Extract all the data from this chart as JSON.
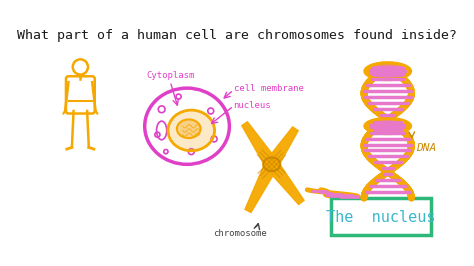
{
  "bg_color": "#ffffff",
  "title": "What part of a human cell are chromosomes found inside?",
  "title_color": "#1a1a1a",
  "title_fontsize": 9.5,
  "answer_text": "The  nucleus",
  "answer_color": "#3bb8cc",
  "answer_box_color": "#2db87a",
  "answer_fontsize": 11,
  "label_cytoplasm": "Cytoplasm",
  "label_cell_membrane": "cell membrane",
  "label_nucleus": "nucleus",
  "label_chromosome": "chromosome",
  "label_dna": "DNA",
  "orange_color": "#f5a800",
  "pink_color": "#e040c8",
  "dna_stripe": "#e878cc",
  "dark": "#444444"
}
